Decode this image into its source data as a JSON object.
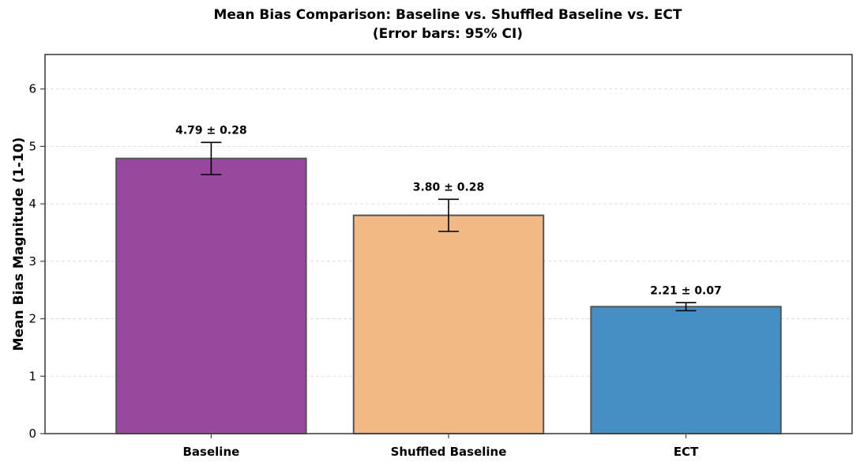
{
  "chart_data": {
    "type": "bar",
    "title": "Mean Bias Comparison: Baseline vs. Shuffled Baseline vs.  ECT",
    "subtitle": "(Error bars: 95% CI)",
    "xlabel": "",
    "ylabel": "Mean Bias Magnitude (1-10)",
    "categories": [
      "Baseline",
      "Shuffled Baseline",
      "ECT"
    ],
    "values": [
      4.79,
      3.8,
      2.21
    ],
    "errors": [
      0.28,
      0.28,
      0.07
    ],
    "data_labels": [
      "4.79 ± 0.28",
      "3.80 ± 0.28",
      "2.21 ± 0.07"
    ],
    "colors": [
      "#8e3b97",
      "#f0b47c",
      "#3787c0"
    ],
    "ylim": [
      0,
      6.6
    ],
    "yticks": [
      0,
      1,
      2,
      3,
      4,
      5,
      6
    ],
    "grid": true,
    "legend": "none"
  }
}
